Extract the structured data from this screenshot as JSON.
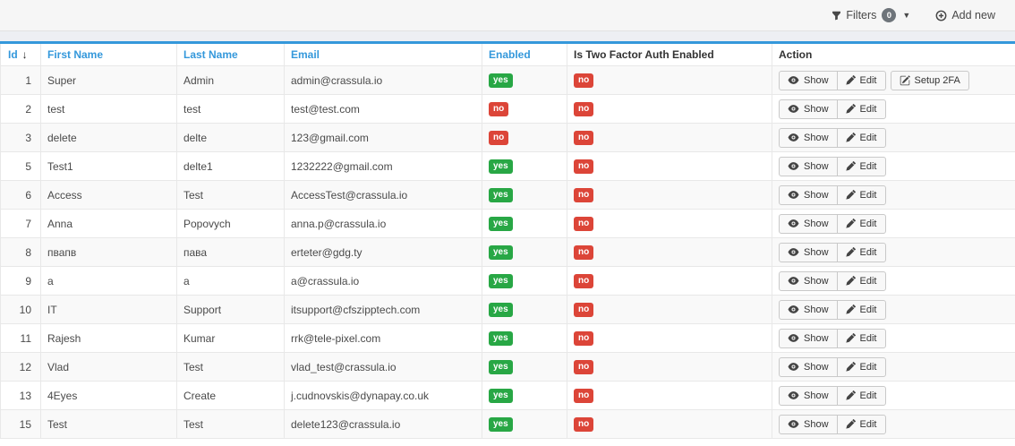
{
  "toolbar": {
    "filters": {
      "label": "Filters",
      "count": "0"
    },
    "add_new": {
      "label": "Add new"
    }
  },
  "colors": {
    "accent": "#3498db",
    "sortable_header": "#3498db",
    "badge_yes": "#28a745",
    "badge_no": "#dc4538"
  },
  "table": {
    "columns": [
      {
        "key": "id",
        "label": "Id",
        "sortable": true,
        "sort": "desc"
      },
      {
        "key": "first_name",
        "label": "First Name",
        "sortable": true
      },
      {
        "key": "last_name",
        "label": "Last Name",
        "sortable": true
      },
      {
        "key": "email",
        "label": "Email",
        "sortable": true
      },
      {
        "key": "enabled",
        "label": "Enabled",
        "sortable": true
      },
      {
        "key": "two_factor",
        "label": "Is Two Factor Auth Enabled",
        "sortable": false
      },
      {
        "key": "action",
        "label": "Action",
        "sortable": false
      }
    ],
    "rows": [
      {
        "id": "1",
        "first_name": "Super",
        "last_name": "Admin",
        "email": "admin@crassula.io",
        "enabled": "yes",
        "two_factor": "no",
        "actions": [
          "Show",
          "Edit",
          "Setup 2FA"
        ]
      },
      {
        "id": "2",
        "first_name": "test",
        "last_name": "test",
        "email": "test@test.com",
        "enabled": "no",
        "two_factor": "no",
        "actions": [
          "Show",
          "Edit"
        ]
      },
      {
        "id": "3",
        "first_name": "delete",
        "last_name": "delte",
        "email": "123@gmail.com",
        "enabled": "no",
        "two_factor": "no",
        "actions": [
          "Show",
          "Edit"
        ]
      },
      {
        "id": "5",
        "first_name": "Test1",
        "last_name": "delte1",
        "email": "1232222@gmail.com",
        "enabled": "yes",
        "two_factor": "no",
        "actions": [
          "Show",
          "Edit"
        ]
      },
      {
        "id": "6",
        "first_name": "Access",
        "last_name": "Test",
        "email": "AccessTest@crassula.io",
        "enabled": "yes",
        "two_factor": "no",
        "actions": [
          "Show",
          "Edit"
        ]
      },
      {
        "id": "7",
        "first_name": "Anna",
        "last_name": "Popovych",
        "email": "anna.p@crassula.io",
        "enabled": "yes",
        "two_factor": "no",
        "actions": [
          "Show",
          "Edit"
        ]
      },
      {
        "id": "8",
        "first_name": "пвапв",
        "last_name": "пава",
        "email": "erteter@gdg.ty",
        "enabled": "yes",
        "two_factor": "no",
        "actions": [
          "Show",
          "Edit"
        ]
      },
      {
        "id": "9",
        "first_name": "a",
        "last_name": "a",
        "email": "a@crassula.io",
        "enabled": "yes",
        "two_factor": "no",
        "actions": [
          "Show",
          "Edit"
        ]
      },
      {
        "id": "10",
        "first_name": "IT",
        "last_name": "Support",
        "email": "itsupport@cfszipptech.com",
        "enabled": "yes",
        "two_factor": "no",
        "actions": [
          "Show",
          "Edit"
        ]
      },
      {
        "id": "11",
        "first_name": "Rajesh",
        "last_name": "Kumar",
        "email": "rrk@tele-pixel.com",
        "enabled": "yes",
        "two_factor": "no",
        "actions": [
          "Show",
          "Edit"
        ]
      },
      {
        "id": "12",
        "first_name": "Vlad",
        "last_name": "Test",
        "email": "vlad_test@crassula.io",
        "enabled": "yes",
        "two_factor": "no",
        "actions": [
          "Show",
          "Edit"
        ]
      },
      {
        "id": "13",
        "first_name": "4Eyes",
        "last_name": "Create",
        "email": "j.cudnovskis@dynapay.co.uk",
        "enabled": "yes",
        "two_factor": "no",
        "actions": [
          "Show",
          "Edit"
        ]
      },
      {
        "id": "15",
        "first_name": "Test",
        "last_name": "Test",
        "email": "delete123@crassula.io",
        "enabled": "yes",
        "two_factor": "no",
        "actions": [
          "Show",
          "Edit"
        ]
      }
    ]
  }
}
